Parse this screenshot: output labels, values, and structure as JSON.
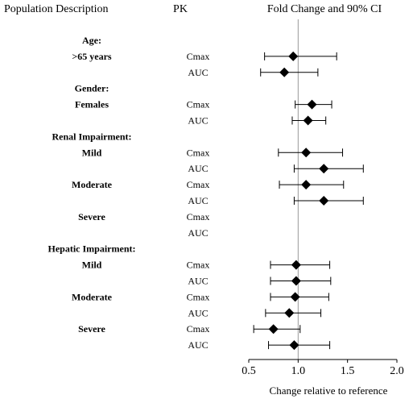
{
  "headers": {
    "population": "Population Description",
    "pk": "PK",
    "ci": "Fold Change and 90% CI"
  },
  "chart_data": {
    "type": "forest",
    "xlabel": "Change relative to reference",
    "xlim": [
      0.5,
      2.0
    ],
    "xticks": [
      0.5,
      1.0,
      1.5,
      2.0
    ],
    "xtick_labels": [
      "0.5",
      "1.0",
      "1.5",
      "2.0"
    ],
    "reference_line": 1.0,
    "groups": [
      {
        "title": "Age:",
        "rows": [
          {
            "label": ">65 years",
            "pk": "Cmax",
            "est": 0.95,
            "lo": 0.66,
            "hi": 1.39
          },
          {
            "label": "",
            "pk": "AUC",
            "est": 0.86,
            "lo": 0.62,
            "hi": 1.2
          }
        ]
      },
      {
        "title": "Gender:",
        "rows": [
          {
            "label": "Females",
            "pk": "Cmax",
            "est": 1.14,
            "lo": 0.97,
            "hi": 1.34
          },
          {
            "label": "",
            "pk": "AUC",
            "est": 1.1,
            "lo": 0.94,
            "hi": 1.28
          }
        ]
      },
      {
        "title": "Renal Impairment:",
        "rows": [
          {
            "label": "Mild",
            "pk": "Cmax",
            "est": 1.08,
            "lo": 0.8,
            "hi": 1.45
          },
          {
            "label": "",
            "pk": "AUC",
            "est": 1.26,
            "lo": 0.96,
            "hi": 1.66
          },
          {
            "label": "Moderate",
            "pk": "Cmax",
            "est": 1.08,
            "lo": 0.81,
            "hi": 1.46
          },
          {
            "label": "",
            "pk": "AUC",
            "est": 1.26,
            "lo": 0.96,
            "hi": 1.66
          },
          {
            "label": "Severe",
            "pk": "Cmax",
            "est": null,
            "lo": null,
            "hi": null
          },
          {
            "label": "",
            "pk": "AUC",
            "est": null,
            "lo": null,
            "hi": null
          }
        ]
      },
      {
        "title": "Hepatic Impairment:",
        "rows": [
          {
            "label": "Mild",
            "pk": "Cmax",
            "est": 0.98,
            "lo": 0.72,
            "hi": 1.32
          },
          {
            "label": "",
            "pk": "AUC",
            "est": 0.98,
            "lo": 0.72,
            "hi": 1.33
          },
          {
            "label": "Moderate",
            "pk": "Cmax",
            "est": 0.97,
            "lo": 0.72,
            "hi": 1.31
          },
          {
            "label": "",
            "pk": "AUC",
            "est": 0.91,
            "lo": 0.67,
            "hi": 1.23
          },
          {
            "label": "Severe",
            "pk": "Cmax",
            "est": 0.75,
            "lo": 0.55,
            "hi": 1.02
          },
          {
            "label": "",
            "pk": "AUC",
            "est": 0.96,
            "lo": 0.7,
            "hi": 1.32
          }
        ]
      }
    ]
  }
}
